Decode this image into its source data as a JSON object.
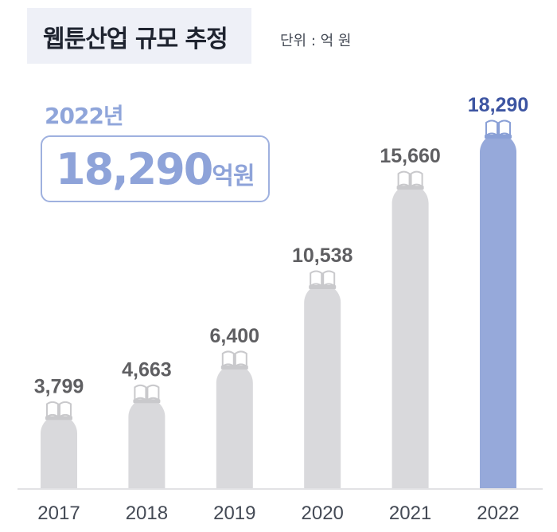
{
  "title": "웹툰산업 규모 추정",
  "unit": "단위 : 억 원",
  "highlight": {
    "year": "2022년",
    "value": "18,290",
    "unit": "억원"
  },
  "colors": {
    "bar_default": "#d9d9dc",
    "bar_highlight": "#96a9da",
    "label_default": "#5f5f62",
    "label_highlight": "#3d55a2",
    "icon": "#ffffff"
  },
  "chart_data": {
    "type": "bar",
    "categories": [
      "2017",
      "2018",
      "2019",
      "2020",
      "2021",
      "2022"
    ],
    "values": [
      3799,
      4663,
      6400,
      10538,
      15660,
      18290
    ],
    "value_labels": [
      "3,799",
      "4,663",
      "6,400",
      "10,538",
      "15,660",
      "18,290"
    ],
    "highlight_index": 5,
    "ylim": [
      0,
      18290
    ],
    "grid": false,
    "bar_icon": "open-book-icon"
  }
}
